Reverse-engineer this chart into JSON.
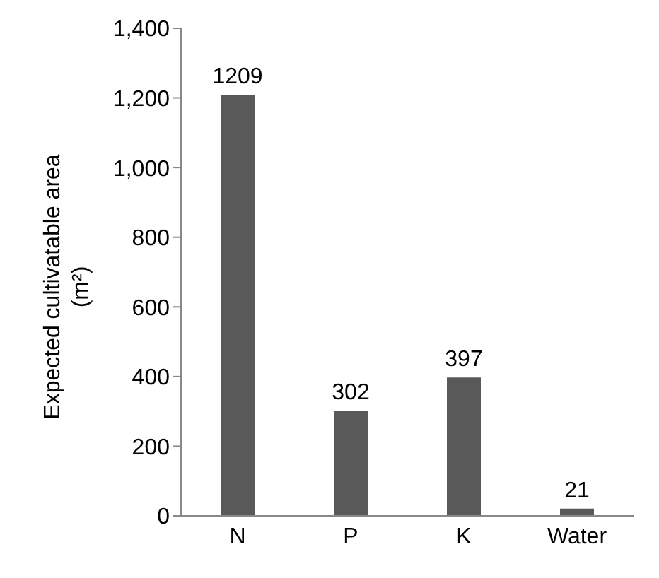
{
  "chart_data": {
    "type": "bar",
    "ylabel": "Expected cultivatable area (m²)",
    "categories": [
      "N",
      "P",
      "K",
      "Water"
    ],
    "values": [
      1209,
      302,
      397,
      21
    ],
    "color": "#595959",
    "ylim": [
      0,
      1400
    ],
    "yticks": [
      0,
      200,
      400,
      600,
      800,
      {
        "value": 1000,
        "label": "1,000"
      },
      {
        "value": 1200,
        "label": "1,200"
      },
      {
        "value": 1400,
        "label": "1,400"
      }
    ],
    "data_labels": true
  }
}
